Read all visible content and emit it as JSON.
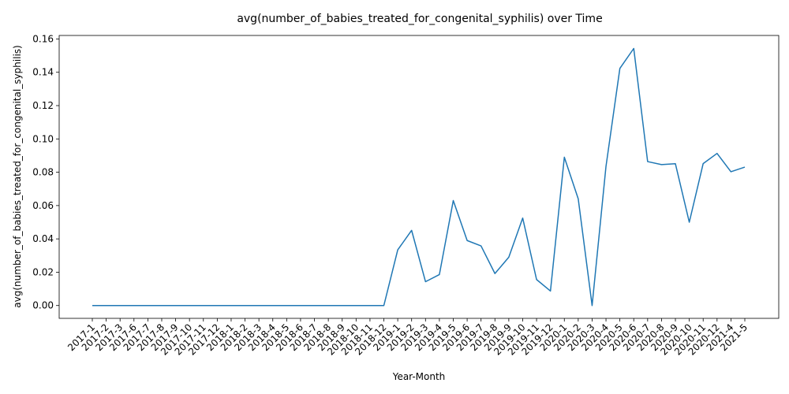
{
  "chart_data": {
    "type": "line",
    "title": "avg(number_of_babies_treated_for_congenital_syphilis) over Time",
    "xlabel": "Year-Month",
    "ylabel": "avg(number_of_babies_treated_for_congenital_syphilis)",
    "ylim": [
      -0.0077,
      0.1621
    ],
    "yticks": [
      0.0,
      0.02,
      0.04,
      0.06,
      0.08,
      0.1,
      0.12,
      0.14,
      0.16
    ],
    "ytick_labels": [
      "0.00",
      "0.02",
      "0.04",
      "0.06",
      "0.08",
      "0.10",
      "0.12",
      "0.14",
      "0.16"
    ],
    "grid": false,
    "line_color": "#1f77b4",
    "categories": [
      "2017-1",
      "2017-2",
      "2017-3",
      "2017-6",
      "2017-7",
      "2017-8",
      "2017-9",
      "2017-10",
      "2017-11",
      "2017-12",
      "2018-1",
      "2018-2",
      "2018-3",
      "2018-4",
      "2018-5",
      "2018-6",
      "2018-7",
      "2018-8",
      "2018-9",
      "2018-10",
      "2018-11",
      "2018-12",
      "2019-1",
      "2019-2",
      "2019-3",
      "2019-4",
      "2019-5",
      "2019-6",
      "2019-7",
      "2019-8",
      "2019-9",
      "2019-10",
      "2019-11",
      "2019-12",
      "2020-1",
      "2020-2",
      "2020-3",
      "2020-4",
      "2020-5",
      "2020-6",
      "2020-7",
      "2020-8",
      "2020-9",
      "2020-10",
      "2020-11",
      "2020-12",
      "2021-4",
      "2021-5"
    ],
    "series": [
      {
        "values": [
          0,
          0,
          0,
          0,
          0,
          0,
          0,
          0,
          0,
          0,
          0,
          0,
          0,
          0,
          0,
          0,
          0,
          0,
          0,
          0,
          0,
          0,
          0.0334,
          0.0451,
          0.0143,
          0.0186,
          0.063,
          0.039,
          0.0358,
          0.0192,
          0.029,
          0.0525,
          0.0156,
          0.0087,
          0.089,
          0.0641,
          0.0,
          0.0835,
          0.1423,
          0.1543,
          0.0864,
          0.0846,
          0.0851,
          0.05,
          0.0852,
          0.0913,
          0.0803,
          0.0831
        ]
      }
    ]
  }
}
